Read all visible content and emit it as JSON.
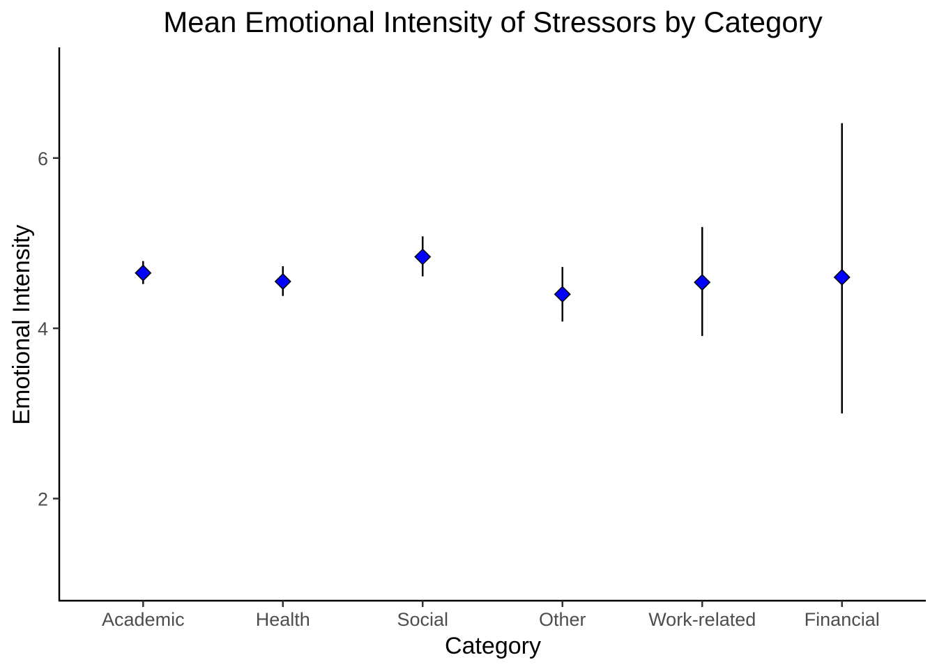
{
  "chart_data": {
    "type": "scatter",
    "title": "Mean Emotional Intensity of Stressors by Category",
    "xlabel": "Category",
    "ylabel": "Emotional Intensity",
    "categories": [
      "Academic",
      "Health",
      "Social",
      "Other",
      "Work-related",
      "Financial"
    ],
    "series": [
      {
        "values": [
          4.65,
          4.55,
          4.84,
          4.4,
          4.54,
          4.6
        ],
        "error_low": [
          4.52,
          4.38,
          4.61,
          4.08,
          3.91,
          3.0
        ],
        "error_high": [
          4.79,
          4.73,
          5.08,
          4.72,
          5.19,
          6.41
        ]
      }
    ],
    "ylim": [
      0.8,
      7.3
    ],
    "yticks": [
      2,
      4,
      6
    ],
    "grid": false,
    "marker": "diamond",
    "point_color": "#0000ff"
  }
}
